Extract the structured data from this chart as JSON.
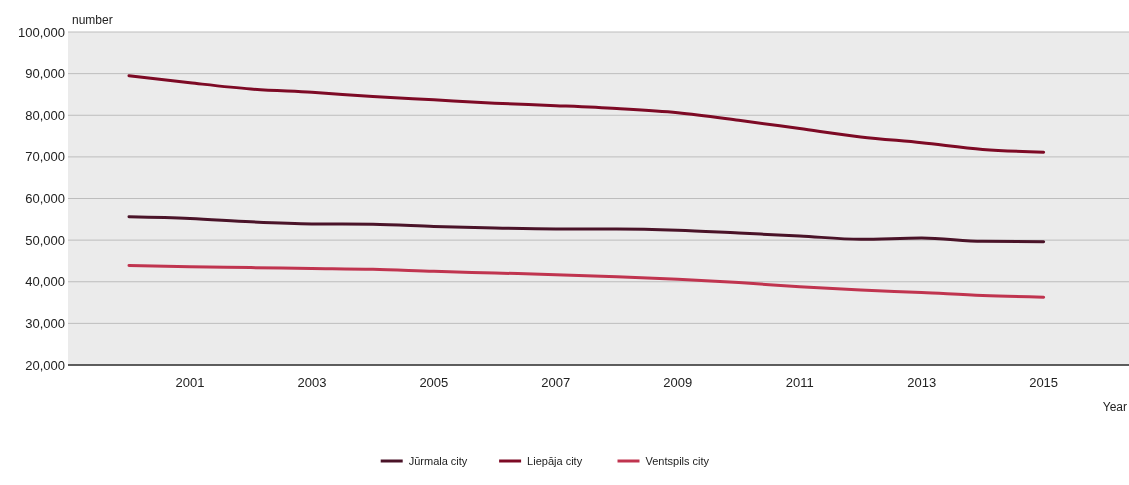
{
  "chart_data": {
    "type": "line",
    "ylabel": "number",
    "xlabel": "Year",
    "x": [
      2000,
      2001,
      2002,
      2003,
      2004,
      2005,
      2006,
      2007,
      2008,
      2009,
      2010,
      2011,
      2012,
      2013,
      2014,
      2015
    ],
    "xlim": [
      1999,
      2016.4
    ],
    "xticks": [
      2001,
      2003,
      2005,
      2007,
      2009,
      2011,
      2013,
      2015
    ],
    "ylim": [
      20000,
      100000
    ],
    "yticks": [
      {
        "value": 20000,
        "label": "20,000"
      },
      {
        "value": 30000,
        "label": "30,000"
      },
      {
        "value": 40000,
        "label": "40,000"
      },
      {
        "value": 50000,
        "label": "50,000"
      },
      {
        "value": 60000,
        "label": "60,000"
      },
      {
        "value": 70000,
        "label": "70,000"
      },
      {
        "value": 80000,
        "label": "80,000"
      },
      {
        "value": 90000,
        "label": "90,000"
      },
      {
        "value": 100000,
        "label": "100,000"
      }
    ],
    "grid": "y",
    "legend": "bottom",
    "marker": "none",
    "line_style": "solid",
    "series": [
      {
        "name": "Jūrmala city",
        "color": "#4a1328",
        "values": [
          55600,
          55200,
          54400,
          53900,
          53800,
          53300,
          52900,
          52700,
          52700,
          52400,
          51700,
          51000,
          50200,
          50500,
          49700,
          49600
        ]
      },
      {
        "name": "Liepāja city",
        "color": "#7d0a25",
        "values": [
          89500,
          87800,
          86300,
          85500,
          84500,
          83700,
          82900,
          82300,
          81600,
          80600,
          78800,
          76800,
          74800,
          73400,
          71800,
          71100
        ]
      },
      {
        "name": "Ventspils city",
        "color": "#c0344f",
        "values": [
          43900,
          43600,
          43400,
          43200,
          43000,
          42500,
          42100,
          41700,
          41200,
          40600,
          39800,
          38800,
          38000,
          37400,
          36700,
          36300
        ]
      }
    ]
  }
}
